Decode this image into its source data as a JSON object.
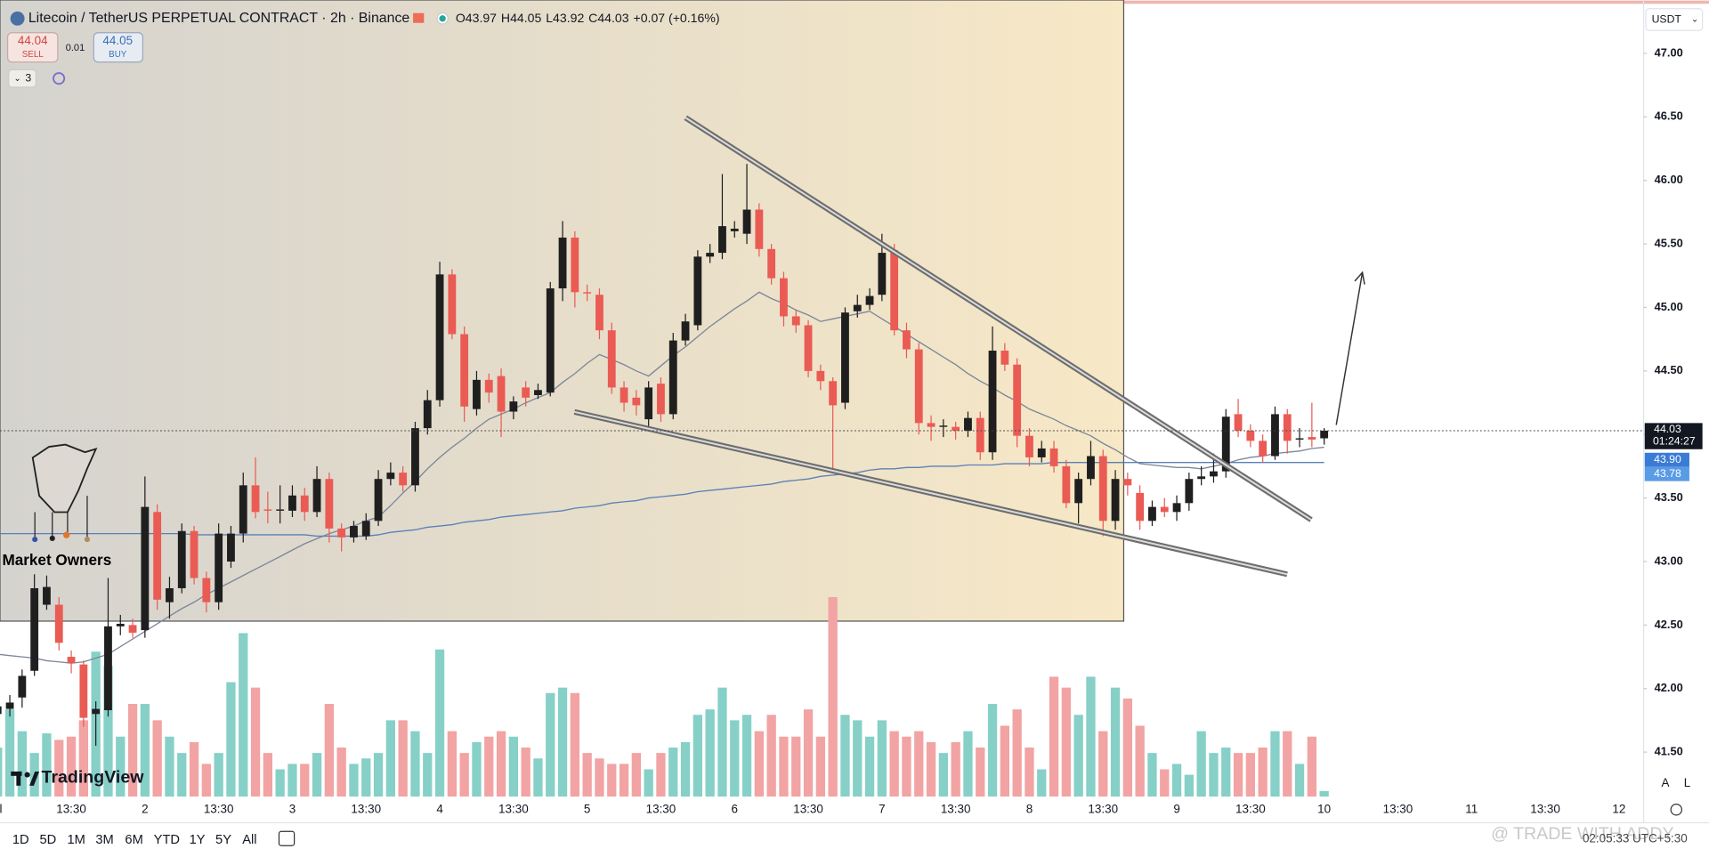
{
  "header": {
    "symbol": "Litecoin / TetherUS PERPETUAL CONTRACT · 2h · Binance",
    "ohlc": [
      "O43.97",
      "H44.05",
      "L43.92",
      "C44.03",
      "+0.07 (+0.16%)"
    ],
    "sell_price": "44.04",
    "sell": "SELL",
    "spread": "0.01",
    "buy_price": "44.05",
    "buy": "BUY",
    "indicators": "3",
    "currency": "USDT"
  },
  "watermarks": {
    "brand": "Market Owners",
    "platform": "TradingView",
    "credit": "@ TRADE WITH ADDY",
    "time": "02:05:33 UTC+5:30"
  },
  "toolbar": {
    "ranges": [
      "1D",
      "5D",
      "1M",
      "3M",
      "6M",
      "YTD",
      "1Y",
      "5Y",
      "All"
    ],
    "scale_buttons": [
      "A",
      "L"
    ]
  },
  "chart_data": {
    "type": "candlestick",
    "categories": [
      "al",
      null,
      null,
      null,
      null,
      null,
      "13:30",
      null,
      null,
      null,
      null,
      null,
      "2",
      null,
      null,
      null,
      null,
      null,
      "13:30",
      null,
      null,
      null,
      null,
      null,
      "3",
      null,
      null,
      null,
      null,
      null,
      "13:30",
      null,
      null,
      null,
      null,
      null,
      "4",
      null,
      null,
      null,
      null,
      null,
      "13:30",
      null,
      null,
      null,
      null,
      null,
      "5",
      null,
      null,
      null,
      null,
      null,
      "13:30",
      null,
      null,
      null,
      null,
      null,
      "6",
      null,
      null,
      null,
      null,
      null,
      "13:30",
      null,
      null,
      null,
      null,
      null,
      "7",
      null,
      null,
      null,
      null,
      null,
      "13:30",
      null,
      null,
      null,
      null,
      null,
      "8",
      null,
      null,
      null,
      null,
      null,
      "13:30",
      null,
      null,
      null,
      null,
      null,
      "9",
      null,
      null,
      null,
      null,
      null,
      "13:30",
      null,
      null,
      null,
      null,
      null,
      "10",
      null,
      null,
      null,
      null,
      null,
      "13:30",
      null,
      null,
      null,
      null,
      null,
      "11",
      null,
      null,
      null,
      null,
      null,
      "13:30",
      null,
      null,
      null,
      null,
      null,
      "12"
    ],
    "ohlc": [
      [
        41.8,
        41.92,
        41.6,
        41.86
      ],
      [
        41.84,
        41.95,
        41.78,
        41.89
      ],
      [
        41.93,
        42.15,
        41.85,
        42.1
      ],
      [
        42.14,
        42.9,
        42.1,
        42.79
      ],
      [
        42.66,
        42.89,
        42.62,
        42.8
      ],
      [
        42.66,
        42.72,
        42.3,
        42.36
      ],
      [
        42.25,
        42.3,
        42.12,
        42.2
      ],
      [
        42.19,
        42.22,
        41.7,
        41.77
      ],
      [
        41.8,
        41.9,
        41.55,
        41.84
      ],
      [
        41.83,
        42.87,
        41.78,
        42.49
      ],
      [
        42.49,
        42.58,
        42.42,
        42.51
      ],
      [
        42.5,
        42.55,
        42.4,
        42.44
      ],
      [
        42.46,
        43.67,
        42.4,
        43.43
      ],
      [
        43.39,
        43.45,
        42.62,
        42.7
      ],
      [
        42.68,
        42.88,
        42.55,
        42.79
      ],
      [
        42.79,
        43.3,
        42.75,
        43.24
      ],
      [
        43.24,
        43.28,
        42.82,
        42.87
      ],
      [
        42.87,
        42.92,
        42.6,
        42.68
      ],
      [
        42.68,
        43.3,
        42.62,
        43.22
      ],
      [
        43.0,
        43.28,
        42.95,
        43.22
      ],
      [
        43.22,
        43.7,
        43.15,
        43.6
      ],
      [
        43.6,
        43.82,
        43.34,
        43.39
      ],
      [
        43.41,
        43.55,
        43.3,
        43.4
      ],
      [
        43.4,
        43.6,
        43.3,
        43.41
      ],
      [
        43.4,
        43.6,
        43.35,
        43.52
      ],
      [
        43.52,
        43.58,
        43.32,
        43.39
      ],
      [
        43.39,
        43.75,
        43.35,
        43.65
      ],
      [
        43.65,
        43.7,
        43.15,
        43.26
      ],
      [
        43.26,
        43.3,
        43.08,
        43.19
      ],
      [
        43.19,
        43.32,
        43.15,
        43.28
      ],
      [
        43.2,
        43.38,
        43.17,
        43.32
      ],
      [
        43.32,
        43.72,
        43.28,
        43.65
      ],
      [
        43.65,
        43.78,
        43.6,
        43.7
      ],
      [
        43.7,
        43.75,
        43.55,
        43.6
      ],
      [
        43.6,
        44.1,
        43.55,
        44.05
      ],
      [
        44.05,
        44.35,
        44.0,
        44.27
      ],
      [
        44.27,
        45.36,
        44.22,
        45.26
      ],
      [
        45.26,
        45.3,
        44.75,
        44.79
      ],
      [
        44.79,
        44.85,
        44.1,
        44.22
      ],
      [
        44.2,
        44.5,
        44.15,
        44.43
      ],
      [
        44.43,
        44.48,
        44.25,
        44.33
      ],
      [
        44.46,
        44.52,
        43.98,
        44.18
      ],
      [
        44.18,
        44.3,
        44.12,
        44.26
      ],
      [
        44.37,
        44.42,
        44.22,
        44.29
      ],
      [
        44.31,
        44.4,
        44.28,
        44.35
      ],
      [
        44.33,
        45.2,
        44.3,
        45.15
      ],
      [
        45.15,
        45.68,
        45.05,
        45.55
      ],
      [
        45.55,
        45.6,
        45.0,
        45.12
      ],
      [
        45.12,
        45.18,
        45.05,
        45.11
      ],
      [
        45.1,
        45.15,
        44.75,
        44.82
      ],
      [
        44.82,
        44.88,
        44.32,
        44.37
      ],
      [
        44.37,
        44.42,
        44.18,
        44.25
      ],
      [
        44.29,
        44.35,
        44.15,
        44.23
      ],
      [
        44.12,
        44.42,
        44.05,
        44.37
      ],
      [
        44.4,
        44.45,
        44.1,
        44.16
      ],
      [
        44.16,
        44.8,
        44.12,
        44.74
      ],
      [
        44.74,
        44.95,
        44.7,
        44.89
      ],
      [
        44.86,
        45.45,
        44.82,
        45.4
      ],
      [
        45.4,
        45.5,
        45.35,
        45.43
      ],
      [
        45.43,
        46.05,
        45.38,
        45.64
      ],
      [
        45.6,
        45.68,
        45.55,
        45.62
      ],
      [
        45.58,
        46.13,
        45.5,
        45.77
      ],
      [
        45.77,
        45.82,
        45.4,
        45.46
      ],
      [
        45.46,
        45.5,
        45.18,
        45.23
      ],
      [
        45.23,
        45.28,
        44.85,
        44.93
      ],
      [
        44.93,
        44.98,
        44.8,
        44.86
      ],
      [
        44.86,
        44.9,
        44.45,
        44.5
      ],
      [
        44.5,
        44.55,
        44.35,
        44.42
      ],
      [
        44.42,
        44.45,
        43.73,
        44.23
      ],
      [
        44.25,
        45.0,
        44.2,
        44.96
      ],
      [
        44.97,
        45.1,
        44.92,
        45.02
      ],
      [
        45.02,
        45.15,
        44.98,
        45.09
      ],
      [
        45.1,
        45.58,
        45.05,
        45.43
      ],
      [
        45.45,
        45.5,
        44.78,
        44.82
      ],
      [
        44.82,
        44.88,
        44.6,
        44.67
      ],
      [
        44.67,
        44.72,
        44.0,
        44.09
      ],
      [
        44.09,
        44.15,
        43.95,
        44.06
      ],
      [
        44.06,
        44.12,
        43.98,
        44.07
      ],
      [
        44.06,
        44.1,
        43.96,
        44.03
      ],
      [
        44.03,
        44.18,
        43.98,
        44.13
      ],
      [
        44.13,
        44.18,
        43.8,
        43.86
      ],
      [
        43.86,
        44.85,
        43.8,
        44.66
      ],
      [
        44.66,
        44.72,
        44.5,
        44.55
      ],
      [
        44.55,
        44.6,
        43.9,
        43.99
      ],
      [
        43.99,
        44.05,
        43.75,
        43.82
      ],
      [
        43.82,
        43.95,
        43.78,
        43.89
      ],
      [
        43.89,
        43.95,
        43.7,
        43.75
      ],
      [
        43.75,
        43.8,
        43.42,
        43.46
      ],
      [
        43.46,
        43.7,
        43.3,
        43.65
      ],
      [
        43.65,
        43.95,
        43.6,
        43.83
      ],
      [
        43.83,
        43.88,
        43.2,
        43.32
      ],
      [
        43.32,
        43.72,
        43.25,
        43.65
      ],
      [
        43.65,
        43.7,
        43.52,
        43.6
      ],
      [
        43.54,
        43.6,
        43.25,
        43.32
      ],
      [
        43.32,
        43.48,
        43.28,
        43.43
      ],
      [
        43.43,
        43.5,
        43.35,
        43.39
      ],
      [
        43.39,
        43.52,
        43.32,
        43.46
      ],
      [
        43.46,
        43.7,
        43.4,
        43.65
      ],
      [
        43.65,
        43.75,
        43.6,
        43.67
      ],
      [
        43.67,
        43.85,
        43.62,
        43.71
      ],
      [
        43.71,
        44.2,
        43.66,
        44.14
      ],
      [
        44.16,
        44.28,
        43.98,
        44.03
      ],
      [
        44.03,
        44.08,
        43.9,
        43.95
      ],
      [
        43.95,
        44.0,
        43.78,
        43.83
      ],
      [
        43.83,
        44.22,
        43.8,
        44.16
      ],
      [
        44.16,
        44.2,
        43.85,
        43.95
      ],
      [
        43.96,
        44.05,
        43.9,
        43.97
      ],
      [
        43.98,
        44.25,
        43.9,
        43.96
      ],
      [
        43.97,
        44.05,
        43.92,
        44.03
      ],
      null,
      null,
      null,
      null,
      null,
      null,
      null,
      null,
      null,
      null,
      null,
      null,
      null,
      null,
      null,
      null,
      null,
      null,
      null,
      null,
      null,
      null,
      null,
      null
    ],
    "volume": [
      45,
      80,
      60,
      40,
      58,
      52,
      55,
      70,
      133,
      120,
      55,
      85,
      85,
      70,
      55,
      40,
      50,
      30,
      40,
      105,
      150,
      100,
      40,
      25,
      30,
      30,
      40,
      85,
      45,
      30,
      35,
      40,
      70,
      70,
      60,
      40,
      135,
      60,
      40,
      50,
      55,
      60,
      55,
      45,
      35,
      95,
      100,
      95,
      40,
      35,
      30,
      30,
      40,
      25,
      40,
      45,
      50,
      75,
      80,
      100,
      70,
      75,
      60,
      75,
      55,
      55,
      80,
      55,
      183,
      75,
      70,
      55,
      70,
      60,
      55,
      60,
      50,
      40,
      50,
      60,
      45,
      85,
      65,
      80,
      45,
      25,
      110,
      100,
      75,
      110,
      60,
      100,
      90,
      65,
      40,
      25,
      30,
      20,
      60,
      40,
      45,
      40,
      40,
      45,
      60,
      60,
      30,
      55,
      5,
      null,
      null,
      null,
      null,
      null,
      null,
      null,
      null,
      null,
      null,
      null,
      null,
      null,
      null,
      null,
      null,
      null,
      null,
      null,
      null,
      null,
      null,
      null,
      null
    ],
    "moving_averages": [
      {
        "color": "#7d8799",
        "last_label": "43.90",
        "label_color": "#3a7bd5",
        "values": [
          42.27,
          42.26,
          42.25,
          42.24,
          42.22,
          42.21,
          42.2,
          42.21,
          42.24,
          42.27,
          42.33,
          42.39,
          42.45,
          42.51,
          42.57,
          42.63,
          42.68,
          42.74,
          42.79,
          42.84,
          42.89,
          42.94,
          42.99,
          43.04,
          43.09,
          43.14,
          43.18,
          43.22,
          43.25,
          43.28,
          43.32,
          43.35,
          43.44,
          43.54,
          43.63,
          43.73,
          43.82,
          43.9,
          43.97,
          44.05,
          44.12,
          44.16,
          44.2,
          44.25,
          44.29,
          44.33,
          44.41,
          44.48,
          44.56,
          44.63,
          44.59,
          44.55,
          44.5,
          44.46,
          44.54,
          44.62,
          44.69,
          44.77,
          44.85,
          44.92,
          44.99,
          45.05,
          45.12,
          45.07,
          45.03,
          44.98,
          44.94,
          44.89,
          44.91,
          44.93,
          44.95,
          44.97,
          44.91,
          44.85,
          44.79,
          44.73,
          44.67,
          44.61,
          44.55,
          44.48,
          44.42,
          44.37,
          44.31,
          44.26,
          44.2,
          44.16,
          44.12,
          44.07,
          44.03,
          43.99,
          43.93,
          43.88,
          43.82,
          43.77,
          43.76,
          43.75,
          43.74,
          43.74,
          43.73,
          43.75,
          43.77,
          43.8,
          43.82,
          43.83,
          43.85,
          43.86,
          43.87,
          43.89,
          43.9,
          null,
          null,
          null,
          null,
          null,
          null,
          null,
          null,
          null,
          null,
          null,
          null,
          null,
          null,
          null,
          null,
          null,
          null,
          null,
          null,
          null,
          null,
          null,
          null
        ]
      },
      {
        "color": "#5b80b8",
        "last_label": "43.78",
        "label_color": "#5a9be6",
        "values": [
          43.22,
          43.22,
          43.22,
          43.22,
          43.22,
          43.22,
          43.22,
          43.22,
          43.22,
          43.22,
          43.22,
          43.22,
          43.22,
          43.22,
          43.22,
          43.22,
          43.21,
          43.21,
          43.21,
          43.21,
          43.21,
          43.21,
          43.21,
          43.21,
          43.21,
          43.21,
          43.2,
          43.2,
          43.2,
          43.2,
          43.2,
          43.21,
          43.23,
          43.24,
          43.25,
          43.27,
          43.28,
          43.29,
          43.31,
          43.32,
          43.33,
          43.35,
          43.36,
          43.37,
          43.38,
          43.39,
          43.4,
          43.42,
          43.43,
          43.44,
          43.46,
          43.47,
          43.48,
          43.5,
          43.51,
          43.52,
          43.53,
          43.55,
          43.56,
          43.57,
          43.58,
          43.59,
          43.6,
          43.61,
          43.63,
          43.64,
          43.65,
          43.67,
          43.68,
          43.69,
          43.7,
          43.72,
          43.73,
          43.73,
          43.74,
          43.74,
          43.75,
          43.75,
          43.75,
          43.76,
          43.76,
          43.76,
          43.77,
          43.77,
          43.77,
          43.77,
          43.78,
          43.78,
          43.78,
          43.78,
          43.78,
          43.78,
          43.78,
          43.78,
          43.78,
          43.78,
          43.78,
          43.78,
          43.78,
          43.78,
          43.78,
          43.78,
          43.78,
          43.78,
          43.78,
          43.78,
          43.78,
          43.78,
          43.78,
          null,
          null,
          null,
          null,
          null,
          null,
          null,
          null,
          null,
          null,
          null,
          null,
          null,
          null,
          null,
          null,
          null,
          null,
          null,
          null,
          null,
          null,
          null,
          null
        ]
      }
    ],
    "price_label": "44.03",
    "countdown": "01:24:27",
    "up_color": "#1f1f1f",
    "down_color": "#ea5b54",
    "volume_up_color": "#86d0c7",
    "volume_down_color": "#f2a3a3",
    "ylim": [
      41.15,
      47.42
    ],
    "yticks": [
      {
        "value": 47,
        "label": "47.00"
      },
      {
        "value": 46.5,
        "label": "46.50"
      },
      {
        "value": 46,
        "label": "46.00"
      },
      {
        "value": 45.5,
        "label": "45.50"
      },
      {
        "value": 45,
        "label": "45.00"
      },
      {
        "value": 44.5,
        "label": "44.50"
      },
      {
        "value": 44,
        "label": "44.00"
      },
      {
        "value": 43.5,
        "label": "43.50"
      },
      {
        "value": 43,
        "label": "43.00"
      },
      {
        "value": 42.5,
        "label": "42.50"
      },
      {
        "value": 42,
        "label": "42.00"
      },
      {
        "value": 41.5,
        "label": "41.50"
      }
    ],
    "grid": false
  }
}
